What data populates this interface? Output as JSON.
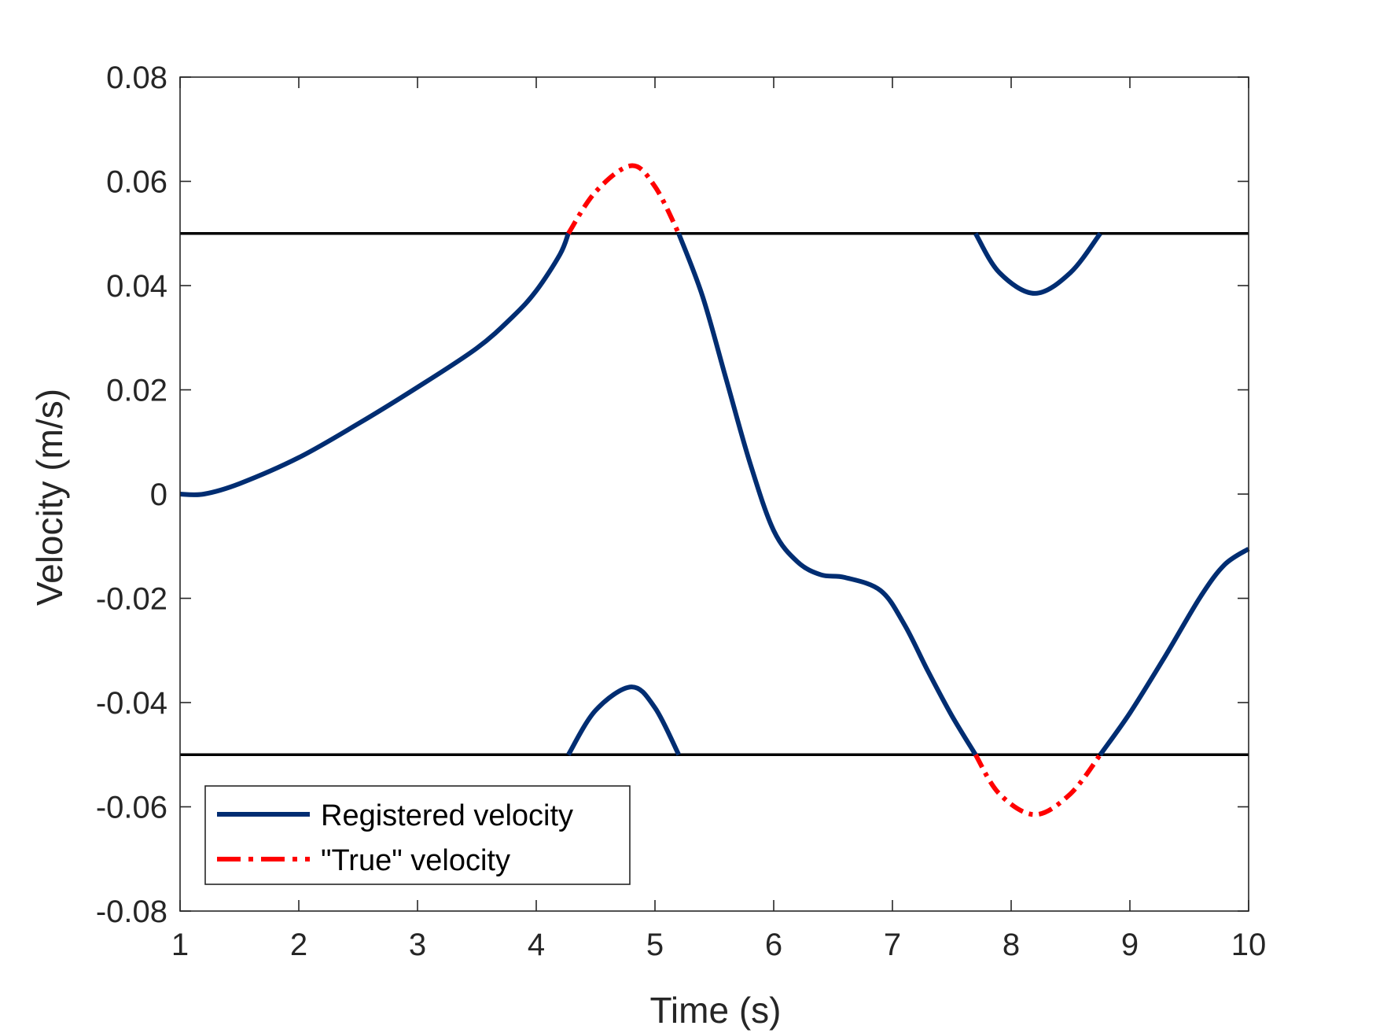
{
  "chart_data": {
    "type": "line",
    "title": "",
    "xlabel": "Time (s)",
    "ylabel": "Velocity (m/s)",
    "xlim": [
      1,
      10
    ],
    "ylim": [
      -0.08,
      0.08
    ],
    "xticks": [
      1,
      2,
      3,
      4,
      5,
      6,
      7,
      8,
      9,
      10
    ],
    "xtick_labels": [
      "1",
      "2",
      "3",
      "4",
      "5",
      "6",
      "7",
      "8",
      "9",
      "10"
    ],
    "yticks": [
      -0.08,
      -0.06,
      -0.04,
      -0.02,
      0,
      0.02,
      0.04,
      0.06,
      0.08
    ],
    "ytick_labels": [
      "-0.08",
      "-0.06",
      "-0.04",
      "-0.02",
      "0",
      "0.02",
      "0.04",
      "0.06",
      "0.08"
    ],
    "grid": false,
    "legend_position": "bottom-left",
    "thresholds": [
      0.05,
      -0.05
    ],
    "series": [
      {
        "name": "Registered velocity",
        "color": "#002D72",
        "style": "solid",
        "segments": [
          {
            "x": [
              1.0,
              1.2,
              1.5,
              2.0,
              2.5,
              3.0,
              3.5,
              3.8,
              4.0,
              4.2,
              4.27
            ],
            "y": [
              0.0,
              0.0,
              0.002,
              0.007,
              0.0135,
              0.0205,
              0.028,
              0.034,
              0.039,
              0.046,
              0.05
            ]
          },
          {
            "x": [
              4.27,
              4.5,
              4.8,
              5.0,
              5.2
            ],
            "y": [
              -0.05,
              -0.0415,
              -0.037,
              -0.041,
              -0.05
            ]
          },
          {
            "x": [
              5.2,
              5.4,
              5.6,
              5.8,
              6.0,
              6.2,
              6.4,
              6.6,
              6.9,
              7.1,
              7.3,
              7.5,
              7.7
            ],
            "y": [
              0.05,
              0.038,
              0.022,
              0.006,
              -0.007,
              -0.013,
              -0.0155,
              -0.016,
              -0.0185,
              -0.025,
              -0.034,
              -0.0425,
              -0.05
            ]
          },
          {
            "x": [
              7.7,
              7.9,
              8.2,
              8.5,
              8.75
            ],
            "y": [
              0.05,
              0.0425,
              0.0385,
              0.0425,
              0.05
            ]
          },
          {
            "x": [
              8.75,
              9.0,
              9.3,
              9.6,
              9.8,
              10.0
            ],
            "y": [
              -0.05,
              -0.042,
              -0.031,
              -0.0195,
              -0.0135,
              -0.0105
            ]
          }
        ]
      },
      {
        "name": "\"True\" velocity",
        "color": "#FF0000",
        "style": "dash-dot",
        "segments": [
          {
            "x": [
              4.27,
              4.5,
              4.8,
              5.0,
              5.2
            ],
            "y": [
              0.05,
              0.058,
              0.063,
              0.059,
              0.05
            ]
          },
          {
            "x": [
              7.7,
              7.9,
              8.2,
              8.5,
              8.75
            ],
            "y": [
              -0.05,
              -0.0575,
              -0.0615,
              -0.0575,
              -0.05
            ]
          }
        ]
      }
    ]
  }
}
